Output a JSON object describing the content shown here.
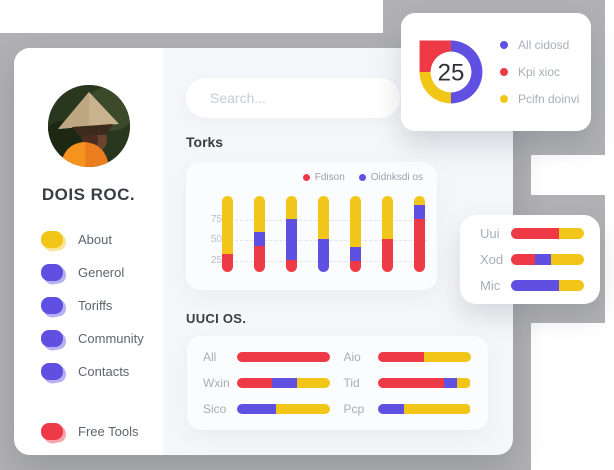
{
  "colors": {
    "red": "#ee3a46",
    "purple": "#6050e2",
    "yellow": "#f2c618",
    "gray_block": "#b1b1b3"
  },
  "sidebar": {
    "profile_name": "DOIS ROC.",
    "items": [
      {
        "label": "About",
        "color": "yellow"
      },
      {
        "label": "Generol",
        "color": "purple"
      },
      {
        "label": "Toriffs",
        "color": "purple"
      },
      {
        "label": "Community",
        "color": "purple"
      },
      {
        "label": "Contacts",
        "color": "purple"
      }
    ],
    "footer_item": {
      "label": "Free Tools",
      "color": "red"
    }
  },
  "search": {
    "placeholder": "Search..."
  },
  "donut_card": {
    "center_value": "25",
    "legend": [
      {
        "label": "All cidosd",
        "color": "purple"
      },
      {
        "label": "Kpi xioc",
        "color": "red"
      },
      {
        "label": "Pcifn doinvi",
        "color": "yellow"
      }
    ]
  },
  "torks": {
    "title": "Torks",
    "legend": [
      {
        "label": "Fdison",
        "color": "red"
      },
      {
        "label": "Oidnksdi os",
        "color": "purple"
      }
    ],
    "y_ticks": [
      "75",
      "50",
      "25"
    ],
    "bars": [
      [
        {
          "color": "yellow",
          "pct": 76
        },
        {
          "color": "red",
          "pct": 24
        }
      ],
      [
        {
          "color": "yellow",
          "pct": 48
        },
        {
          "color": "purple",
          "pct": 18
        },
        {
          "color": "red",
          "pct": 34
        }
      ],
      [
        {
          "color": "yellow",
          "pct": 30
        },
        {
          "color": "purple",
          "pct": 54
        },
        {
          "color": "red",
          "pct": 16
        }
      ],
      [
        {
          "color": "yellow",
          "pct": 57
        },
        {
          "color": "purple",
          "pct": 43
        }
      ],
      [
        {
          "color": "yellow",
          "pct": 67
        },
        {
          "color": "purple",
          "pct": 18
        },
        {
          "color": "red",
          "pct": 15
        }
      ],
      [
        {
          "color": "yellow",
          "pct": 56
        },
        {
          "color": "red",
          "pct": 44
        }
      ],
      [
        {
          "color": "yellow",
          "pct": 12
        },
        {
          "color": "purple",
          "pct": 18
        },
        {
          "color": "red",
          "pct": 70
        }
      ]
    ]
  },
  "uuci": {
    "title": "UUCI OS.",
    "left_rows": [
      {
        "label": "All",
        "segments": [
          {
            "color": "red",
            "pct": 100
          }
        ]
      },
      {
        "label": "Wxin",
        "segments": [
          {
            "color": "red",
            "pct": 38
          },
          {
            "color": "purple",
            "pct": 26
          },
          {
            "color": "yellow",
            "pct": 36
          }
        ]
      },
      {
        "label": "Sico",
        "segments": [
          {
            "color": "purple",
            "pct": 42
          },
          {
            "color": "yellow",
            "pct": 58
          }
        ]
      }
    ],
    "right_rows": [
      {
        "label": "Aio",
        "segments": [
          {
            "color": "red",
            "pct": 50
          },
          {
            "color": "yellow",
            "pct": 50
          }
        ]
      },
      {
        "label": "Tid",
        "segments": [
          {
            "color": "red",
            "pct": 72
          },
          {
            "color": "purple",
            "pct": 14
          },
          {
            "color": "yellow",
            "pct": 14
          }
        ]
      },
      {
        "label": "Pcp",
        "segments": [
          {
            "color": "purple",
            "pct": 29
          },
          {
            "color": "yellow",
            "pct": 71
          }
        ]
      }
    ]
  },
  "side_card": {
    "rows": [
      {
        "label": "Uui",
        "segments": [
          {
            "color": "red",
            "pct": 66
          },
          {
            "color": "yellow",
            "pct": 34
          }
        ]
      },
      {
        "label": "Xod",
        "segments": [
          {
            "color": "red",
            "pct": 33
          },
          {
            "color": "purple",
            "pct": 22
          },
          {
            "color": "yellow",
            "pct": 45
          }
        ]
      },
      {
        "label": "Mic",
        "segments": [
          {
            "color": "purple",
            "pct": 66
          },
          {
            "color": "yellow",
            "pct": 34
          }
        ]
      }
    ]
  },
  "chart_data": [
    {
      "type": "pie",
      "title": "donut-summary",
      "center_label": "25",
      "slices": [
        {
          "label": "All cidosd",
          "pct": 50
        },
        {
          "label": "Kpi xioc",
          "pct": 25
        },
        {
          "label": "Pcifn doinvi",
          "pct": 25
        }
      ]
    },
    {
      "type": "bar",
      "title": "Torks",
      "stacked": true,
      "legend": [
        "Fdison",
        "Oidnksdi os"
      ],
      "y_ticks": [
        25,
        50,
        75
      ],
      "bars_bottom_up_pct": [
        {
          "red": 24,
          "yellow": 76
        },
        {
          "red": 34,
          "purple": 18,
          "yellow": 48
        },
        {
          "red": 16,
          "purple": 54,
          "yellow": 30
        },
        {
          "purple": 43,
          "yellow": 57
        },
        {
          "red": 15,
          "purple": 18,
          "yellow": 67
        },
        {
          "red": 44,
          "yellow": 56
        },
        {
          "red": 70,
          "purple": 18,
          "yellow": 12
        }
      ]
    },
    {
      "type": "bar",
      "title": "UUCI OS.",
      "orientation": "horizontal",
      "stacked": true,
      "rows": [
        {
          "label": "All",
          "red": 100
        },
        {
          "label": "Wxin",
          "red": 38,
          "purple": 26,
          "yellow": 36
        },
        {
          "label": "Sico",
          "purple": 42,
          "yellow": 58
        },
        {
          "label": "Aio",
          "red": 50,
          "yellow": 50
        },
        {
          "label": "Tid",
          "red": 72,
          "purple": 14,
          "yellow": 14
        },
        {
          "label": "Pcp",
          "purple": 29,
          "yellow": 71
        }
      ]
    },
    {
      "type": "bar",
      "title": "side-card",
      "orientation": "horizontal",
      "stacked": true,
      "rows": [
        {
          "label": "Uui",
          "red": 66,
          "yellow": 34
        },
        {
          "label": "Xod",
          "red": 33,
          "purple": 22,
          "yellow": 45
        },
        {
          "label": "Mic",
          "purple": 66,
          "yellow": 34
        }
      ]
    }
  ]
}
